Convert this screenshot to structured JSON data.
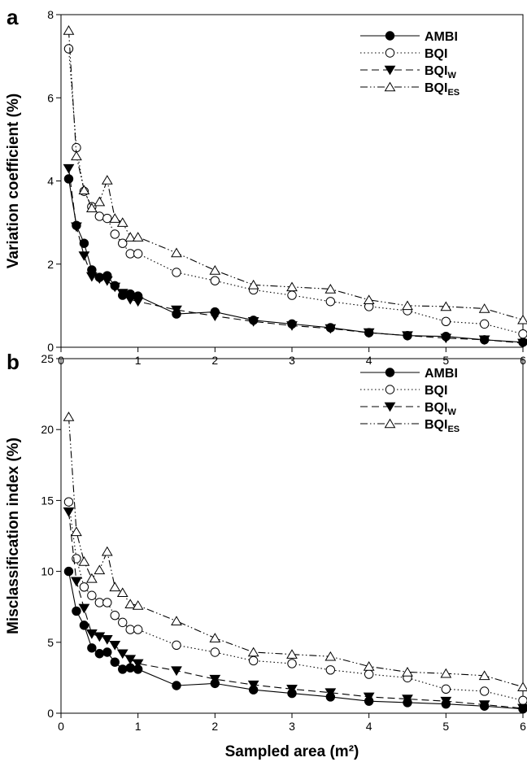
{
  "chart_data": [
    {
      "type": "line",
      "panel": "a",
      "title": "",
      "xlabel": "",
      "ylabel": "Variation coefficient (%)",
      "xlim": [
        0,
        6
      ],
      "ylim": [
        0,
        8
      ],
      "xticks": [
        0,
        1,
        2,
        3,
        4,
        5,
        6
      ],
      "yticks": [
        0,
        2,
        4,
        6,
        8
      ],
      "legend_position": "top-right",
      "series": [
        {
          "name": "AMBI",
          "sub": "",
          "marker": "filled-circle",
          "dash": "solid",
          "color": "#000000",
          "x": [
            0.1,
            0.2,
            0.3,
            0.4,
            0.5,
            0.6,
            0.7,
            0.8,
            0.9,
            1.0,
            1.5,
            2.0,
            2.5,
            3.0,
            3.5,
            4.0,
            4.5,
            5.0,
            5.5,
            6.0
          ],
          "y": [
            4.05,
            2.93,
            2.5,
            1.86,
            1.68,
            1.72,
            1.48,
            1.25,
            1.28,
            1.23,
            0.8,
            0.85,
            0.65,
            0.56,
            0.47,
            0.35,
            0.28,
            0.26,
            0.18,
            0.12
          ]
        },
        {
          "name": "BQI",
          "sub": "",
          "marker": "open-circle",
          "dash": "dotted",
          "color": "#000000",
          "x": [
            0.1,
            0.2,
            0.3,
            0.4,
            0.5,
            0.6,
            0.7,
            0.8,
            0.9,
            1.0,
            1.5,
            2.0,
            2.5,
            3.0,
            3.5,
            4.0,
            4.5,
            5.0,
            5.5,
            6.0
          ],
          "y": [
            7.18,
            4.8,
            3.75,
            3.38,
            3.15,
            3.1,
            2.72,
            2.5,
            2.25,
            2.25,
            1.8,
            1.6,
            1.38,
            1.25,
            1.1,
            0.98,
            0.88,
            0.62,
            0.56,
            0.32
          ]
        },
        {
          "name": "BQI",
          "sub": "W",
          "marker": "filled-triangle-down",
          "dash": "dashed",
          "color": "#000000",
          "x": [
            0.1,
            0.2,
            0.3,
            0.4,
            0.5,
            0.6,
            0.7,
            0.8,
            0.9,
            1.0,
            1.5,
            2.0,
            2.5,
            3.0,
            3.5,
            4.0,
            4.5,
            5.0,
            5.5,
            6.0
          ],
          "y": [
            4.3,
            2.9,
            2.2,
            1.7,
            1.65,
            1.6,
            1.45,
            1.3,
            1.15,
            1.1,
            0.9,
            0.75,
            0.62,
            0.52,
            0.45,
            0.35,
            0.28,
            0.22,
            0.18,
            0.1
          ]
        },
        {
          "name": "BQI",
          "sub": "ES",
          "marker": "open-triangle-up",
          "dash": "dash-dot-dot",
          "color": "#000000",
          "x": [
            0.1,
            0.2,
            0.3,
            0.4,
            0.5,
            0.6,
            0.7,
            0.8,
            0.9,
            1.0,
            1.5,
            2.0,
            2.5,
            3.0,
            3.5,
            4.0,
            4.5,
            5.0,
            5.5,
            6.0
          ],
          "y": [
            7.62,
            4.6,
            3.78,
            3.35,
            3.5,
            4.02,
            3.1,
            3.0,
            2.65,
            2.65,
            2.27,
            1.85,
            1.5,
            1.45,
            1.4,
            1.14,
            1.0,
            0.98,
            0.93,
            0.66
          ]
        }
      ]
    },
    {
      "type": "line",
      "panel": "b",
      "title": "",
      "xlabel": "Sampled area (m²)",
      "ylabel": "Misclassification index (%)",
      "xlim": [
        0,
        6
      ],
      "ylim": [
        0,
        25
      ],
      "xticks": [
        0,
        1,
        2,
        3,
        4,
        5,
        6
      ],
      "yticks": [
        0,
        5,
        10,
        15,
        20,
        25
      ],
      "legend_position": "top-right",
      "series": [
        {
          "name": "AMBI",
          "sub": "",
          "marker": "filled-circle",
          "dash": "solid",
          "color": "#000000",
          "x": [
            0.1,
            0.2,
            0.3,
            0.4,
            0.5,
            0.6,
            0.7,
            0.8,
            0.9,
            1.0,
            1.5,
            2.0,
            2.5,
            3.0,
            3.5,
            4.0,
            4.5,
            5.0,
            5.5,
            6.0
          ],
          "y": [
            10.0,
            7.2,
            6.2,
            4.6,
            4.2,
            4.3,
            3.6,
            3.1,
            3.2,
            3.1,
            1.95,
            2.1,
            1.65,
            1.4,
            1.15,
            0.85,
            0.75,
            0.65,
            0.5,
            0.3
          ]
        },
        {
          "name": "BQI",
          "sub": "",
          "marker": "open-circle",
          "dash": "dotted",
          "color": "#000000",
          "x": [
            0.1,
            0.2,
            0.3,
            0.4,
            0.5,
            0.6,
            0.7,
            0.8,
            0.9,
            1.0,
            1.5,
            2.0,
            2.5,
            3.0,
            3.5,
            4.0,
            4.5,
            5.0,
            5.5,
            6.0
          ],
          "y": [
            14.9,
            10.9,
            8.9,
            8.3,
            7.8,
            7.8,
            6.9,
            6.4,
            5.9,
            5.9,
            4.8,
            4.3,
            3.7,
            3.5,
            3.05,
            2.75,
            2.5,
            1.7,
            1.55,
            0.9
          ]
        },
        {
          "name": "BQI",
          "sub": "W",
          "marker": "filled-triangle-down",
          "dash": "dashed",
          "color": "#000000",
          "x": [
            0.1,
            0.2,
            0.3,
            0.4,
            0.5,
            0.6,
            0.7,
            0.8,
            0.9,
            1.0,
            1.5,
            2.0,
            2.5,
            3.0,
            3.5,
            4.0,
            4.5,
            5.0,
            5.5,
            6.0
          ],
          "y": [
            14.2,
            9.3,
            7.4,
            5.6,
            5.4,
            5.2,
            4.8,
            4.2,
            3.8,
            3.5,
            3.0,
            2.4,
            2.0,
            1.7,
            1.45,
            1.15,
            1.0,
            0.85,
            0.6,
            0.35
          ]
        },
        {
          "name": "BQI",
          "sub": "ES",
          "marker": "open-triangle-up",
          "dash": "dash-dot-dot",
          "color": "#000000",
          "x": [
            0.1,
            0.2,
            0.3,
            0.4,
            0.5,
            0.6,
            0.7,
            0.8,
            0.9,
            1.0,
            1.5,
            2.0,
            2.5,
            3.0,
            3.5,
            4.0,
            4.5,
            5.0,
            5.5,
            6.0
          ],
          "y": [
            20.9,
            12.8,
            10.7,
            9.5,
            10.1,
            11.4,
            8.9,
            8.5,
            7.7,
            7.6,
            6.5,
            5.3,
            4.3,
            4.15,
            4.0,
            3.3,
            2.9,
            2.8,
            2.65,
            1.85
          ]
        }
      ]
    }
  ]
}
